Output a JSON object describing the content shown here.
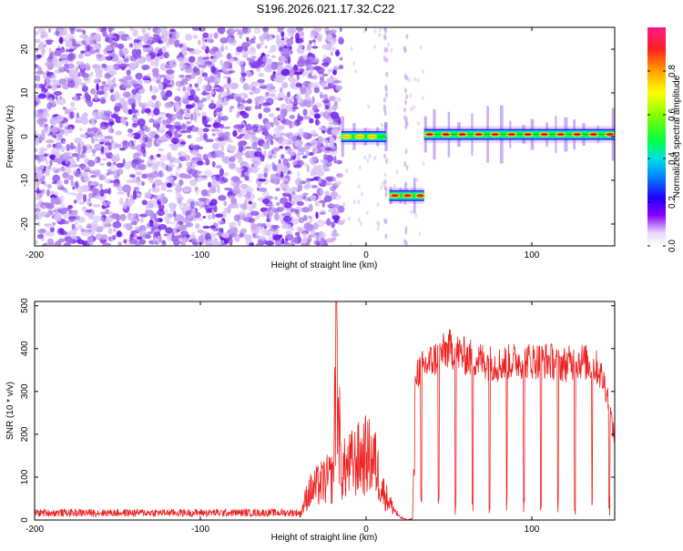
{
  "title": "S196.2026.021.17.32.C22",
  "chart_data": [
    {
      "type": "heatmap",
      "name": "spectrogram",
      "xlabel": "Height of straight line (km)",
      "ylabel": "Frequency (Hz)",
      "xlim": [
        -200,
        150
      ],
      "ylim": [
        -25,
        25
      ],
      "xticks": [
        -200,
        -100,
        0,
        100
      ],
      "yticks": [
        -20,
        -10,
        0,
        10,
        20
      ],
      "colorbar": {
        "label": "Normalized spectral amplitude",
        "range": [
          0,
          1
        ],
        "ticks": [
          0.0,
          0.2,
          0.4,
          0.6,
          0.8
        ],
        "tick_labels": [
          "0.0",
          "0.2",
          "0.4",
          "0.6",
          "0.8"
        ]
      },
      "features": [
        {
          "desc": "broadband noise",
          "x_range": [
            -200,
            -15
          ],
          "amplitude": 0.15
        },
        {
          "desc": "tone",
          "x_range": [
            -15,
            12
          ],
          "freq": 0,
          "amplitude": 0.6
        },
        {
          "desc": "tone",
          "x_range": [
            14,
            35
          ],
          "freq": -13.5,
          "amplitude": 0.7
        },
        {
          "desc": "tone",
          "x_range": [
            35,
            150
          ],
          "freq": 0.5,
          "amplitude": 0.85
        }
      ]
    },
    {
      "type": "line",
      "name": "snr",
      "xlabel": "Height of straight line (km)",
      "ylabel": "SNR (10 * v/v)",
      "xlim": [
        -200,
        150
      ],
      "ylim": [
        0,
        510
      ],
      "xticks": [
        -200,
        -100,
        0,
        100
      ],
      "yticks": [
        0,
        100,
        200,
        300,
        400,
        500
      ],
      "color": "#ee2222",
      "series": [
        {
          "name": "SNR",
          "x": [
            -200,
            -40,
            -35,
            -25,
            -20,
            -18,
            -15,
            -10,
            -5,
            0,
            5,
            10,
            15,
            20,
            25,
            28,
            30,
            40,
            50,
            60,
            70,
            80,
            90,
            100,
            110,
            120,
            130,
            140,
            145,
            150
          ],
          "y": [
            15,
            15,
            90,
            130,
            140,
            510,
            160,
            180,
            200,
            215,
            200,
            100,
            50,
            10,
            0,
            5,
            370,
            400,
            430,
            410,
            400,
            390,
            400,
            400,
            400,
            390,
            400,
            380,
            330,
            200
          ]
        }
      ]
    }
  ]
}
